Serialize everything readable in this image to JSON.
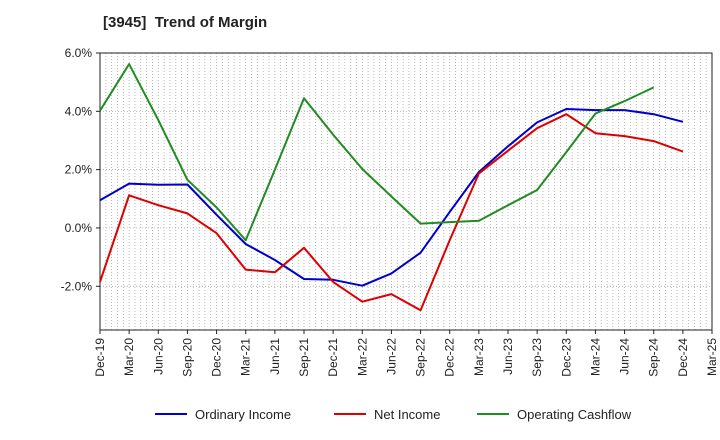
{
  "chart_data": {
    "type": "line",
    "title": "[3945]  Trend of Margin",
    "xlabel": "",
    "ylabel": "",
    "categories": [
      "Dec-19",
      "Mar-20",
      "Jun-20",
      "Sep-20",
      "Dec-20",
      "Mar-21",
      "Jun-21",
      "Sep-21",
      "Dec-21",
      "Mar-22",
      "Jun-22",
      "Sep-22",
      "Dec-22",
      "Mar-23",
      "Jun-23",
      "Sep-23",
      "Dec-23",
      "Mar-24",
      "Jun-24",
      "Sep-24",
      "Dec-24",
      "Mar-25"
    ],
    "ylim": [
      -3.5,
      6.0
    ],
    "yticks": [
      -2.0,
      0.0,
      2.0,
      4.0,
      6.0
    ],
    "ytick_labels": [
      "-2.0%",
      "0.0%",
      "2.0%",
      "4.0%",
      "6.0%"
    ],
    "grid": true,
    "legend_position": "bottom",
    "series": [
      {
        "name": "Ordinary Income",
        "color": "#0000cc",
        "values": [
          0.95,
          1.52,
          1.48,
          1.49,
          0.45,
          -0.55,
          -1.1,
          -1.75,
          -1.78,
          -1.98,
          -1.56,
          -0.85,
          0.55,
          1.92,
          2.8,
          3.62,
          4.08,
          4.04,
          4.04,
          3.9,
          3.64,
          null
        ]
      },
      {
        "name": "Net Income",
        "color": "#dd0000",
        "values": [
          -1.85,
          1.12,
          0.78,
          0.5,
          -0.18,
          -1.43,
          -1.52,
          -0.68,
          -1.85,
          -2.53,
          -2.27,
          -2.82,
          -0.42,
          1.87,
          2.65,
          3.42,
          3.9,
          3.25,
          3.15,
          2.98,
          2.62,
          null
        ]
      },
      {
        "name": "Operating Cashflow",
        "color": "#228b22",
        "values": [
          4.02,
          5.62,
          3.7,
          1.65,
          0.7,
          -0.42,
          2.0,
          4.45,
          3.2,
          2.02,
          1.08,
          0.15,
          0.2,
          0.25,
          0.78,
          1.3,
          2.6,
          3.92,
          4.35,
          4.82,
          null,
          null
        ]
      }
    ]
  }
}
